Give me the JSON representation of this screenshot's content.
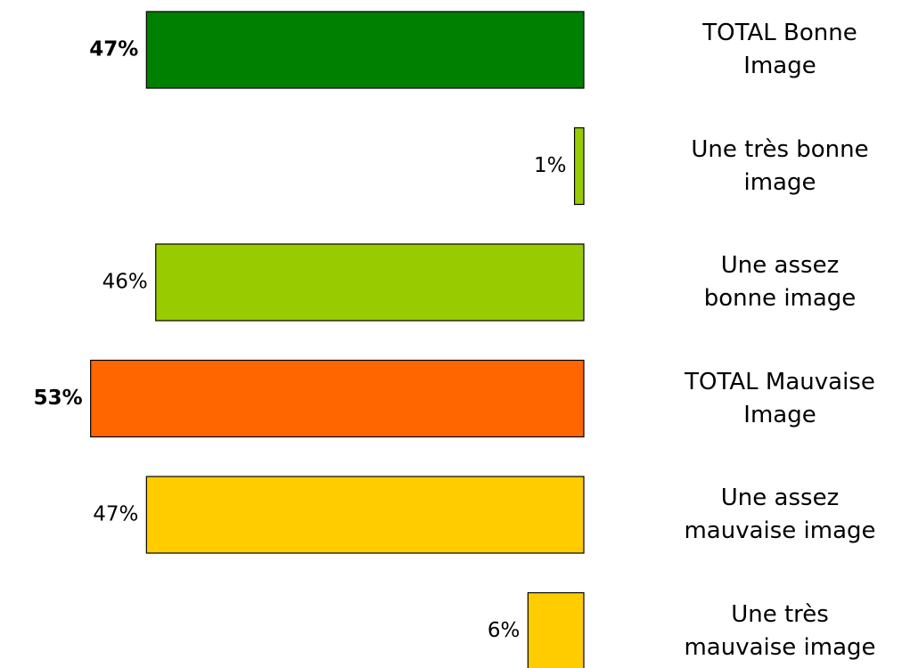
{
  "chart_data": {
    "type": "bar",
    "orientation": "horizontal",
    "categories": [
      "TOTAL Bonne\nImage",
      "Une très bonne\nimage",
      "Une assez\nbonne image",
      "TOTAL Mauvaise\nImage",
      "Une assez\nmauvaise image",
      "Une très\nmauvaise image"
    ],
    "values": [
      47,
      1,
      46,
      53,
      47,
      6
    ],
    "value_labels": [
      "47%",
      "1%",
      "46%",
      "53%",
      "47%",
      "6%"
    ],
    "colors": [
      "#008000",
      "#99cc00",
      "#99cc00",
      "#ff6600",
      "#ffcc00",
      "#ffcc00"
    ],
    "bold_labels": [
      true,
      false,
      false,
      true,
      false,
      false
    ]
  }
}
